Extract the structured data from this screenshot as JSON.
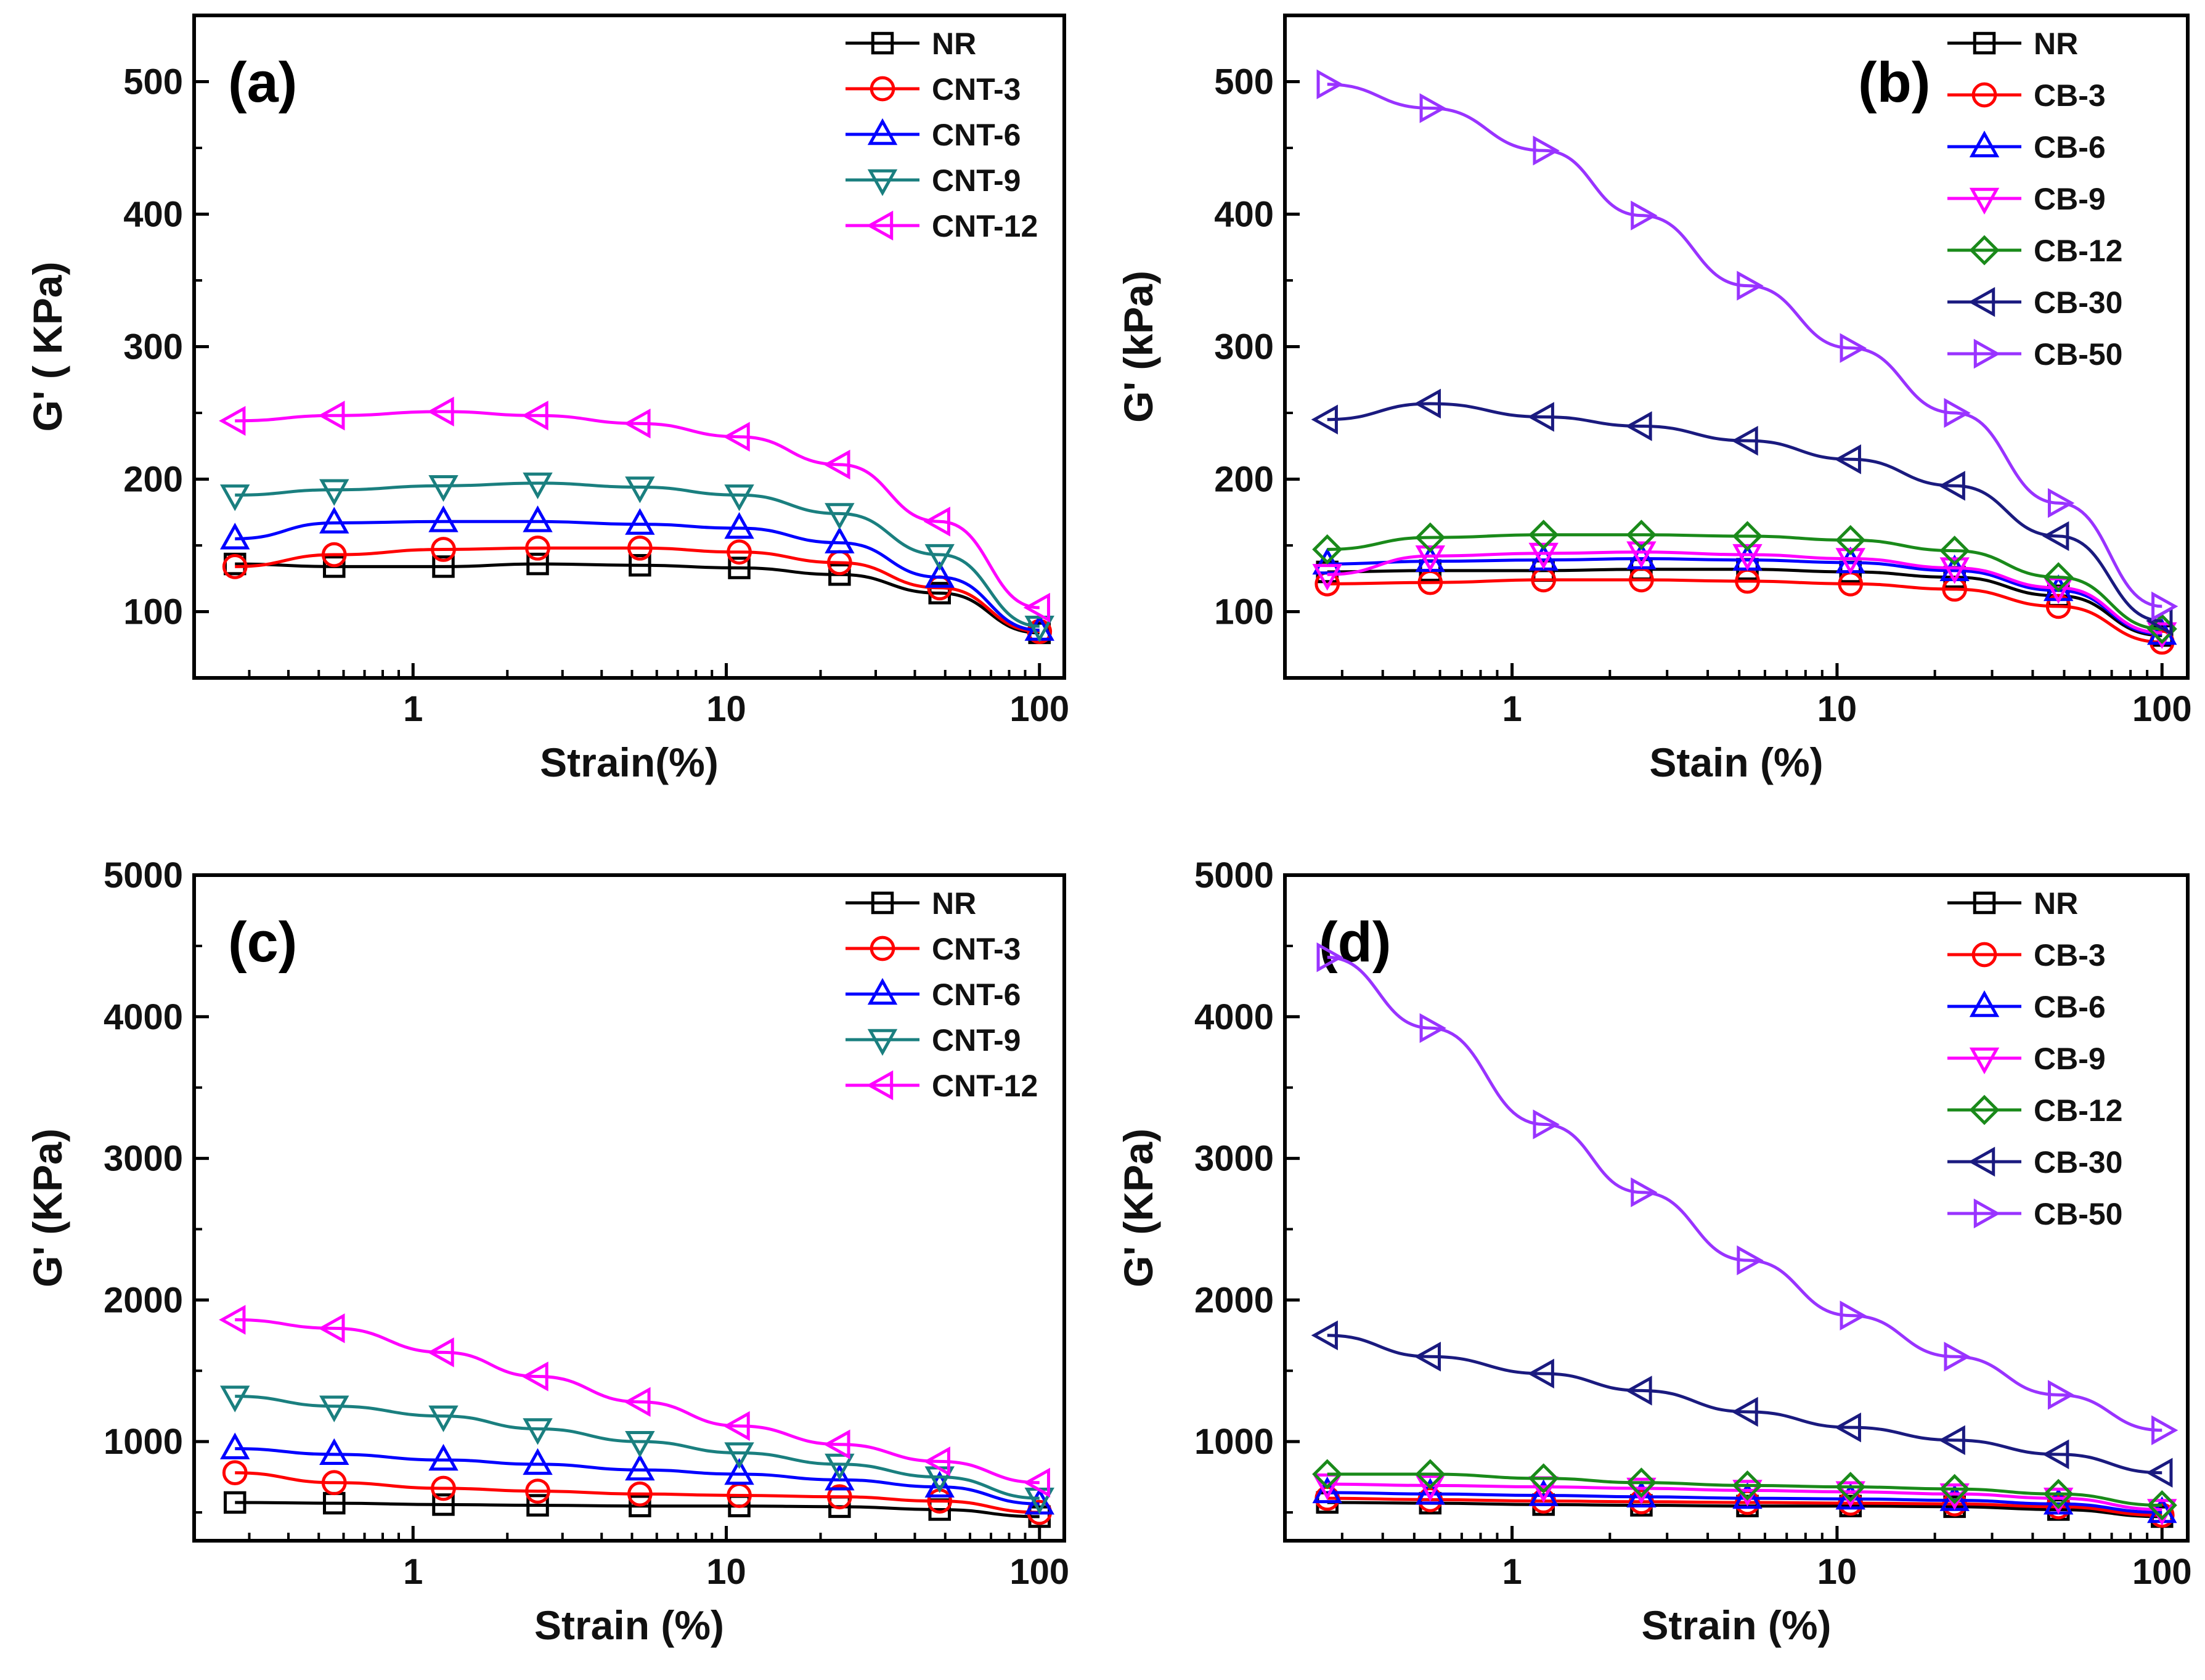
{
  "chart_data": [
    {
      "type": "line",
      "panel": "(a)",
      "xscale": "log",
      "xlim": [
        0.2,
        120
      ],
      "ylim": [
        50,
        550
      ],
      "xticks": [
        {
          "v": 1,
          "label": "1"
        },
        {
          "v": 10,
          "label": "10"
        },
        {
          "v": 100,
          "label": "100"
        }
      ],
      "yticks": [
        {
          "v": 100,
          "label": "100"
        },
        {
          "v": 200,
          "label": "200"
        },
        {
          "v": 300,
          "label": "300"
        },
        {
          "v": 400,
          "label": "400"
        },
        {
          "v": 500,
          "label": "500"
        }
      ],
      "xlabel": "Strain(%)",
      "ylabel": "G' ( KPa)",
      "legend_position": "top-right",
      "x": [
        0.27,
        0.56,
        1.25,
        2.5,
        5.3,
        11,
        23,
        48,
        100
      ],
      "series": [
        {
          "name": "NR",
          "color": "#000000",
          "marker": "square",
          "values": [
            136,
            134,
            134,
            136,
            135,
            133,
            128,
            114,
            84
          ]
        },
        {
          "name": "CNT-3",
          "color": "#ff0000",
          "marker": "circle",
          "values": [
            134,
            143,
            147,
            148,
            148,
            145,
            137,
            118,
            85
          ]
        },
        {
          "name": "CNT-6",
          "color": "#0000ff",
          "marker": "triangle-up",
          "values": [
            155,
            167,
            168,
            168,
            166,
            163,
            152,
            126,
            86
          ]
        },
        {
          "name": "CNT-9",
          "color": "#1a7f7f",
          "marker": "triangle-down",
          "values": [
            188,
            192,
            195,
            197,
            194,
            188,
            174,
            143,
            89
          ]
        },
        {
          "name": "CNT-12",
          "color": "#ff00ff",
          "marker": "triangle-left",
          "values": [
            244,
            248,
            251,
            248,
            242,
            232,
            211,
            168,
            103
          ]
        }
      ]
    },
    {
      "type": "line",
      "panel": "(b)",
      "xscale": "log",
      "xlim": [
        0.2,
        120
      ],
      "ylim": [
        50,
        550
      ],
      "xticks": [
        {
          "v": 1,
          "label": "1"
        },
        {
          "v": 10,
          "label": "10"
        },
        {
          "v": 100,
          "label": "100"
        }
      ],
      "yticks": [
        {
          "v": 100,
          "label": "100"
        },
        {
          "v": 200,
          "label": "200"
        },
        {
          "v": 300,
          "label": "300"
        },
        {
          "v": 400,
          "label": "400"
        },
        {
          "v": 500,
          "label": "500"
        }
      ],
      "xlabel": "Stain (%)",
      "ylabel": "G' (kPa)",
      "legend_position": "top-right",
      "x": [
        0.27,
        0.56,
        1.25,
        2.5,
        5.3,
        11,
        23,
        48,
        100
      ],
      "series": [
        {
          "name": "NR",
          "color": "#000000",
          "marker": "square",
          "values": [
            130,
            131,
            131,
            132,
            132,
            130,
            126,
            112,
            82
          ]
        },
        {
          "name": "CB-3",
          "color": "#ff0000",
          "marker": "circle",
          "values": [
            121,
            122,
            124,
            124,
            123,
            121,
            117,
            104,
            77
          ]
        },
        {
          "name": "CB-6",
          "color": "#0000ff",
          "marker": "triangle-up",
          "values": [
            136,
            138,
            139,
            140,
            139,
            137,
            131,
            116,
            83
          ]
        },
        {
          "name": "CB-9",
          "color": "#ff00ff",
          "marker": "triangle-down",
          "values": [
            128,
            142,
            144,
            145,
            143,
            140,
            133,
            118,
            84
          ]
        },
        {
          "name": "CB-12",
          "color": "#1a8a1a",
          "marker": "diamond",
          "values": [
            147,
            156,
            158,
            158,
            157,
            154,
            146,
            126,
            87
          ]
        },
        {
          "name": "CB-30",
          "color": "#1a1a7f",
          "marker": "triangle-left",
          "values": [
            245,
            257,
            247,
            240,
            229,
            215,
            195,
            157,
            93
          ]
        },
        {
          "name": "CB-50",
          "color": "#9933ff",
          "marker": "triangle-right",
          "values": [
            498,
            480,
            448,
            399,
            346,
            299,
            250,
            182,
            104
          ]
        }
      ]
    },
    {
      "type": "line",
      "panel": "(c)",
      "xscale": "log",
      "xlim": [
        0.2,
        120
      ],
      "ylim": [
        300,
        5000
      ],
      "xticks": [
        {
          "v": 1,
          "label": "1"
        },
        {
          "v": 10,
          "label": "10"
        },
        {
          "v": 100,
          "label": "100"
        }
      ],
      "yticks": [
        {
          "v": 1000,
          "label": "1000"
        },
        {
          "v": 2000,
          "label": "2000"
        },
        {
          "v": 3000,
          "label": "3000"
        },
        {
          "v": 4000,
          "label": "4000"
        },
        {
          "v": 5000,
          "label": "5000"
        }
      ],
      "xlabel": "Strain (%)",
      "ylabel": "G' (KPa)",
      "legend_position": "top-right",
      "x": [
        0.27,
        0.56,
        1.25,
        2.5,
        5.3,
        11,
        23,
        48,
        100
      ],
      "series": [
        {
          "name": "NR",
          "color": "#000000",
          "marker": "square",
          "values": [
            570,
            565,
            555,
            550,
            545,
            545,
            540,
            520,
            470
          ]
        },
        {
          "name": "CNT-3",
          "color": "#ff0000",
          "marker": "circle",
          "values": [
            780,
            710,
            670,
            650,
            630,
            620,
            610,
            580,
            500
          ]
        },
        {
          "name": "CNT-6",
          "color": "#0000ff",
          "marker": "triangle-up",
          "values": [
            950,
            910,
            870,
            840,
            800,
            770,
            730,
            680,
            560
          ]
        },
        {
          "name": "CNT-9",
          "color": "#1a7f7f",
          "marker": "triangle-down",
          "values": [
            1320,
            1250,
            1180,
            1090,
            1000,
            920,
            840,
            750,
            600
          ]
        },
        {
          "name": "CNT-12",
          "color": "#ff00ff",
          "marker": "triangle-left",
          "values": [
            1860,
            1800,
            1630,
            1460,
            1280,
            1110,
            980,
            860,
            710
          ]
        }
      ]
    },
    {
      "type": "line",
      "panel": "(d)",
      "xscale": "log",
      "xlim": [
        0.2,
        120
      ],
      "ylim": [
        300,
        5000
      ],
      "xticks": [
        {
          "v": 1,
          "label": "1"
        },
        {
          "v": 10,
          "label": "10"
        },
        {
          "v": 100,
          "label": "100"
        }
      ],
      "yticks": [
        {
          "v": 1000,
          "label": "1000"
        },
        {
          "v": 2000,
          "label": "2000"
        },
        {
          "v": 3000,
          "label": "3000"
        },
        {
          "v": 4000,
          "label": "4000"
        },
        {
          "v": 5000,
          "label": "5000"
        }
      ],
      "xlabel": "Strain (%)",
      "ylabel": "G' (KPa)",
      "legend_position": "top-right",
      "x": [
        0.27,
        0.56,
        1.25,
        2.5,
        5.3,
        11,
        23,
        48,
        100
      ],
      "series": [
        {
          "name": "NR",
          "color": "#000000",
          "marker": "square",
          "values": [
            570,
            565,
            555,
            550,
            545,
            545,
            540,
            520,
            470
          ]
        },
        {
          "name": "CB-3",
          "color": "#ff0000",
          "marker": "circle",
          "values": [
            600,
            590,
            580,
            575,
            570,
            565,
            560,
            540,
            480
          ]
        },
        {
          "name": "CB-6",
          "color": "#0000ff",
          "marker": "triangle-up",
          "values": [
            640,
            630,
            620,
            610,
            600,
            595,
            585,
            560,
            500
          ]
        },
        {
          "name": "CB-9",
          "color": "#ff00ff",
          "marker": "triangle-down",
          "values": [
            700,
            690,
            680,
            670,
            655,
            645,
            630,
            600,
            520
          ]
        },
        {
          "name": "CB-12",
          "color": "#1a8a1a",
          "marker": "diamond",
          "values": [
            770,
            770,
            740,
            710,
            690,
            680,
            665,
            630,
            550
          ]
        },
        {
          "name": "CB-30",
          "color": "#1a1a7f",
          "marker": "triangle-left",
          "values": [
            1750,
            1600,
            1480,
            1360,
            1210,
            1100,
            1010,
            910,
            780
          ]
        },
        {
          "name": "CB-50",
          "color": "#9933ff",
          "marker": "triangle-right",
          "values": [
            4420,
            3920,
            3240,
            2760,
            2280,
            1890,
            1600,
            1330,
            1080
          ]
        }
      ]
    }
  ]
}
